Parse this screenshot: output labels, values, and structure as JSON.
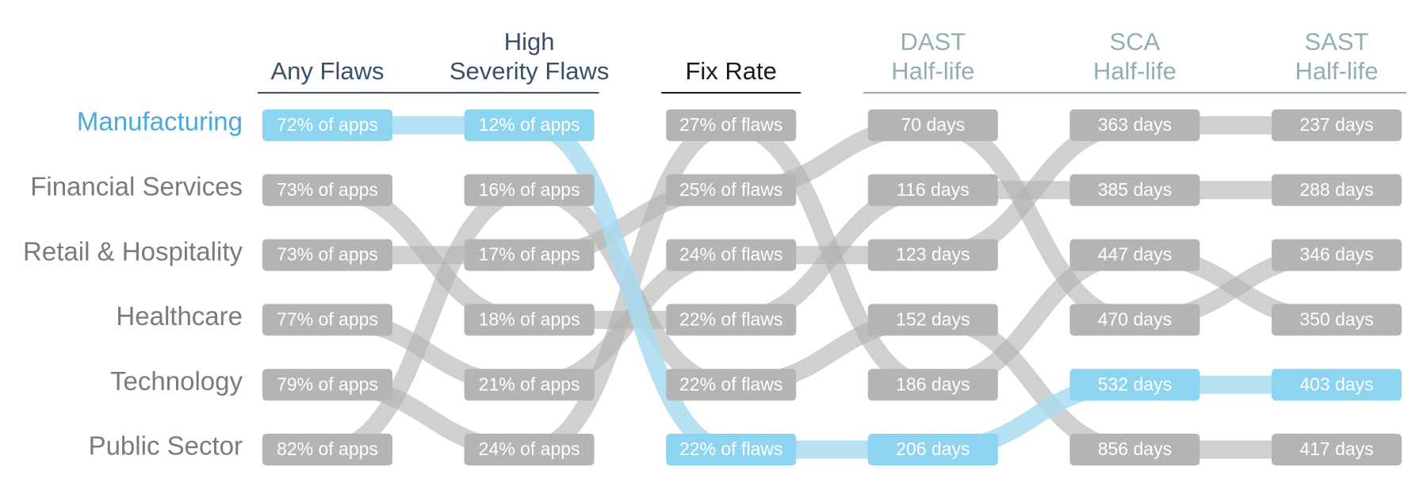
{
  "chart_data": {
    "type": "bump",
    "categories": [
      "Manufacturing",
      "Financial Services",
      "Retail & Hospitality",
      "Healthcare",
      "Technology",
      "Public Sector"
    ],
    "highlight": "Manufacturing",
    "colors": {
      "box": "#b4b4b4",
      "line": "#b0b0b0",
      "label": "#7b7b7b",
      "highlight_box": "#8dd4f0",
      "highlight_line": "#a9dcf1",
      "highlight_label": "#4ca9dd"
    },
    "series": [
      {
        "name": "Any Flaws",
        "header_color": "#3a5068",
        "order": [
          "Manufacturing",
          "Financial Services",
          "Retail & Hospitality",
          "Healthcare",
          "Technology",
          "Public Sector"
        ],
        "values": [
          72,
          73,
          73,
          77,
          79,
          82
        ],
        "value_labels": [
          "72% of apps",
          "73% of apps",
          "73% of apps",
          "77% of apps",
          "79% of apps",
          "82% of apps"
        ]
      },
      {
        "name": "High\nSeverity Flaws",
        "header_color": "#3a5068",
        "order": [
          "Manufacturing",
          "Public Sector",
          "Retail & Hospitality",
          "Financial Services",
          "Healthcare",
          "Technology"
        ],
        "values": [
          12,
          16,
          17,
          18,
          21,
          24
        ],
        "value_labels": [
          "12% of apps",
          "16% of apps",
          "17% of apps",
          "18% of apps",
          "21% of apps",
          "24% of apps"
        ]
      },
      {
        "name": "Fix Rate",
        "header_color": "#1a1a1a",
        "order": [
          "Technology",
          "Retail & Hospitality",
          "Healthcare",
          "Financial Services",
          "Public Sector",
          "Manufacturing"
        ],
        "values": [
          27,
          25,
          24,
          22,
          22,
          22
        ],
        "value_labels": [
          "27% of flaws",
          "25% of flaws",
          "24% of flaws",
          "22% of flaws",
          "22% of flaws",
          "22% of flaws"
        ]
      },
      {
        "name": "DAST\nHalf-life",
        "header_color": "#94aeb0",
        "order": [
          "Retail & Hospitality",
          "Financial Services",
          "Healthcare",
          "Public Sector",
          "Technology",
          "Manufacturing"
        ],
        "values": [
          70,
          116,
          123,
          152,
          186,
          206
        ],
        "value_labels": [
          "70 days",
          "116 days",
          "123 days",
          "152 days",
          "186 days",
          "206 days"
        ]
      },
      {
        "name": "SCA\nHalf-life",
        "header_color": "#94aeb0",
        "order": [
          "Healthcare",
          "Financial Services",
          "Technology",
          "Retail & Hospitality",
          "Manufacturing",
          "Public Sector"
        ],
        "values": [
          363,
          385,
          447,
          470,
          532,
          856
        ],
        "value_labels": [
          "363 days",
          "385 days",
          "447 days",
          "470 days",
          "532 days",
          "856 days"
        ]
      },
      {
        "name": "SAST\nHalf-life",
        "header_color": "#94aeb0",
        "order": [
          "Healthcare",
          "Financial Services",
          "Retail & Hospitality",
          "Technology",
          "Manufacturing",
          "Public Sector"
        ],
        "values": [
          237,
          288,
          346,
          350,
          403,
          417
        ],
        "value_labels": [
          "237 days",
          "288 days",
          "346 days",
          "350 days",
          "403 days",
          "417 days"
        ]
      }
    ]
  }
}
